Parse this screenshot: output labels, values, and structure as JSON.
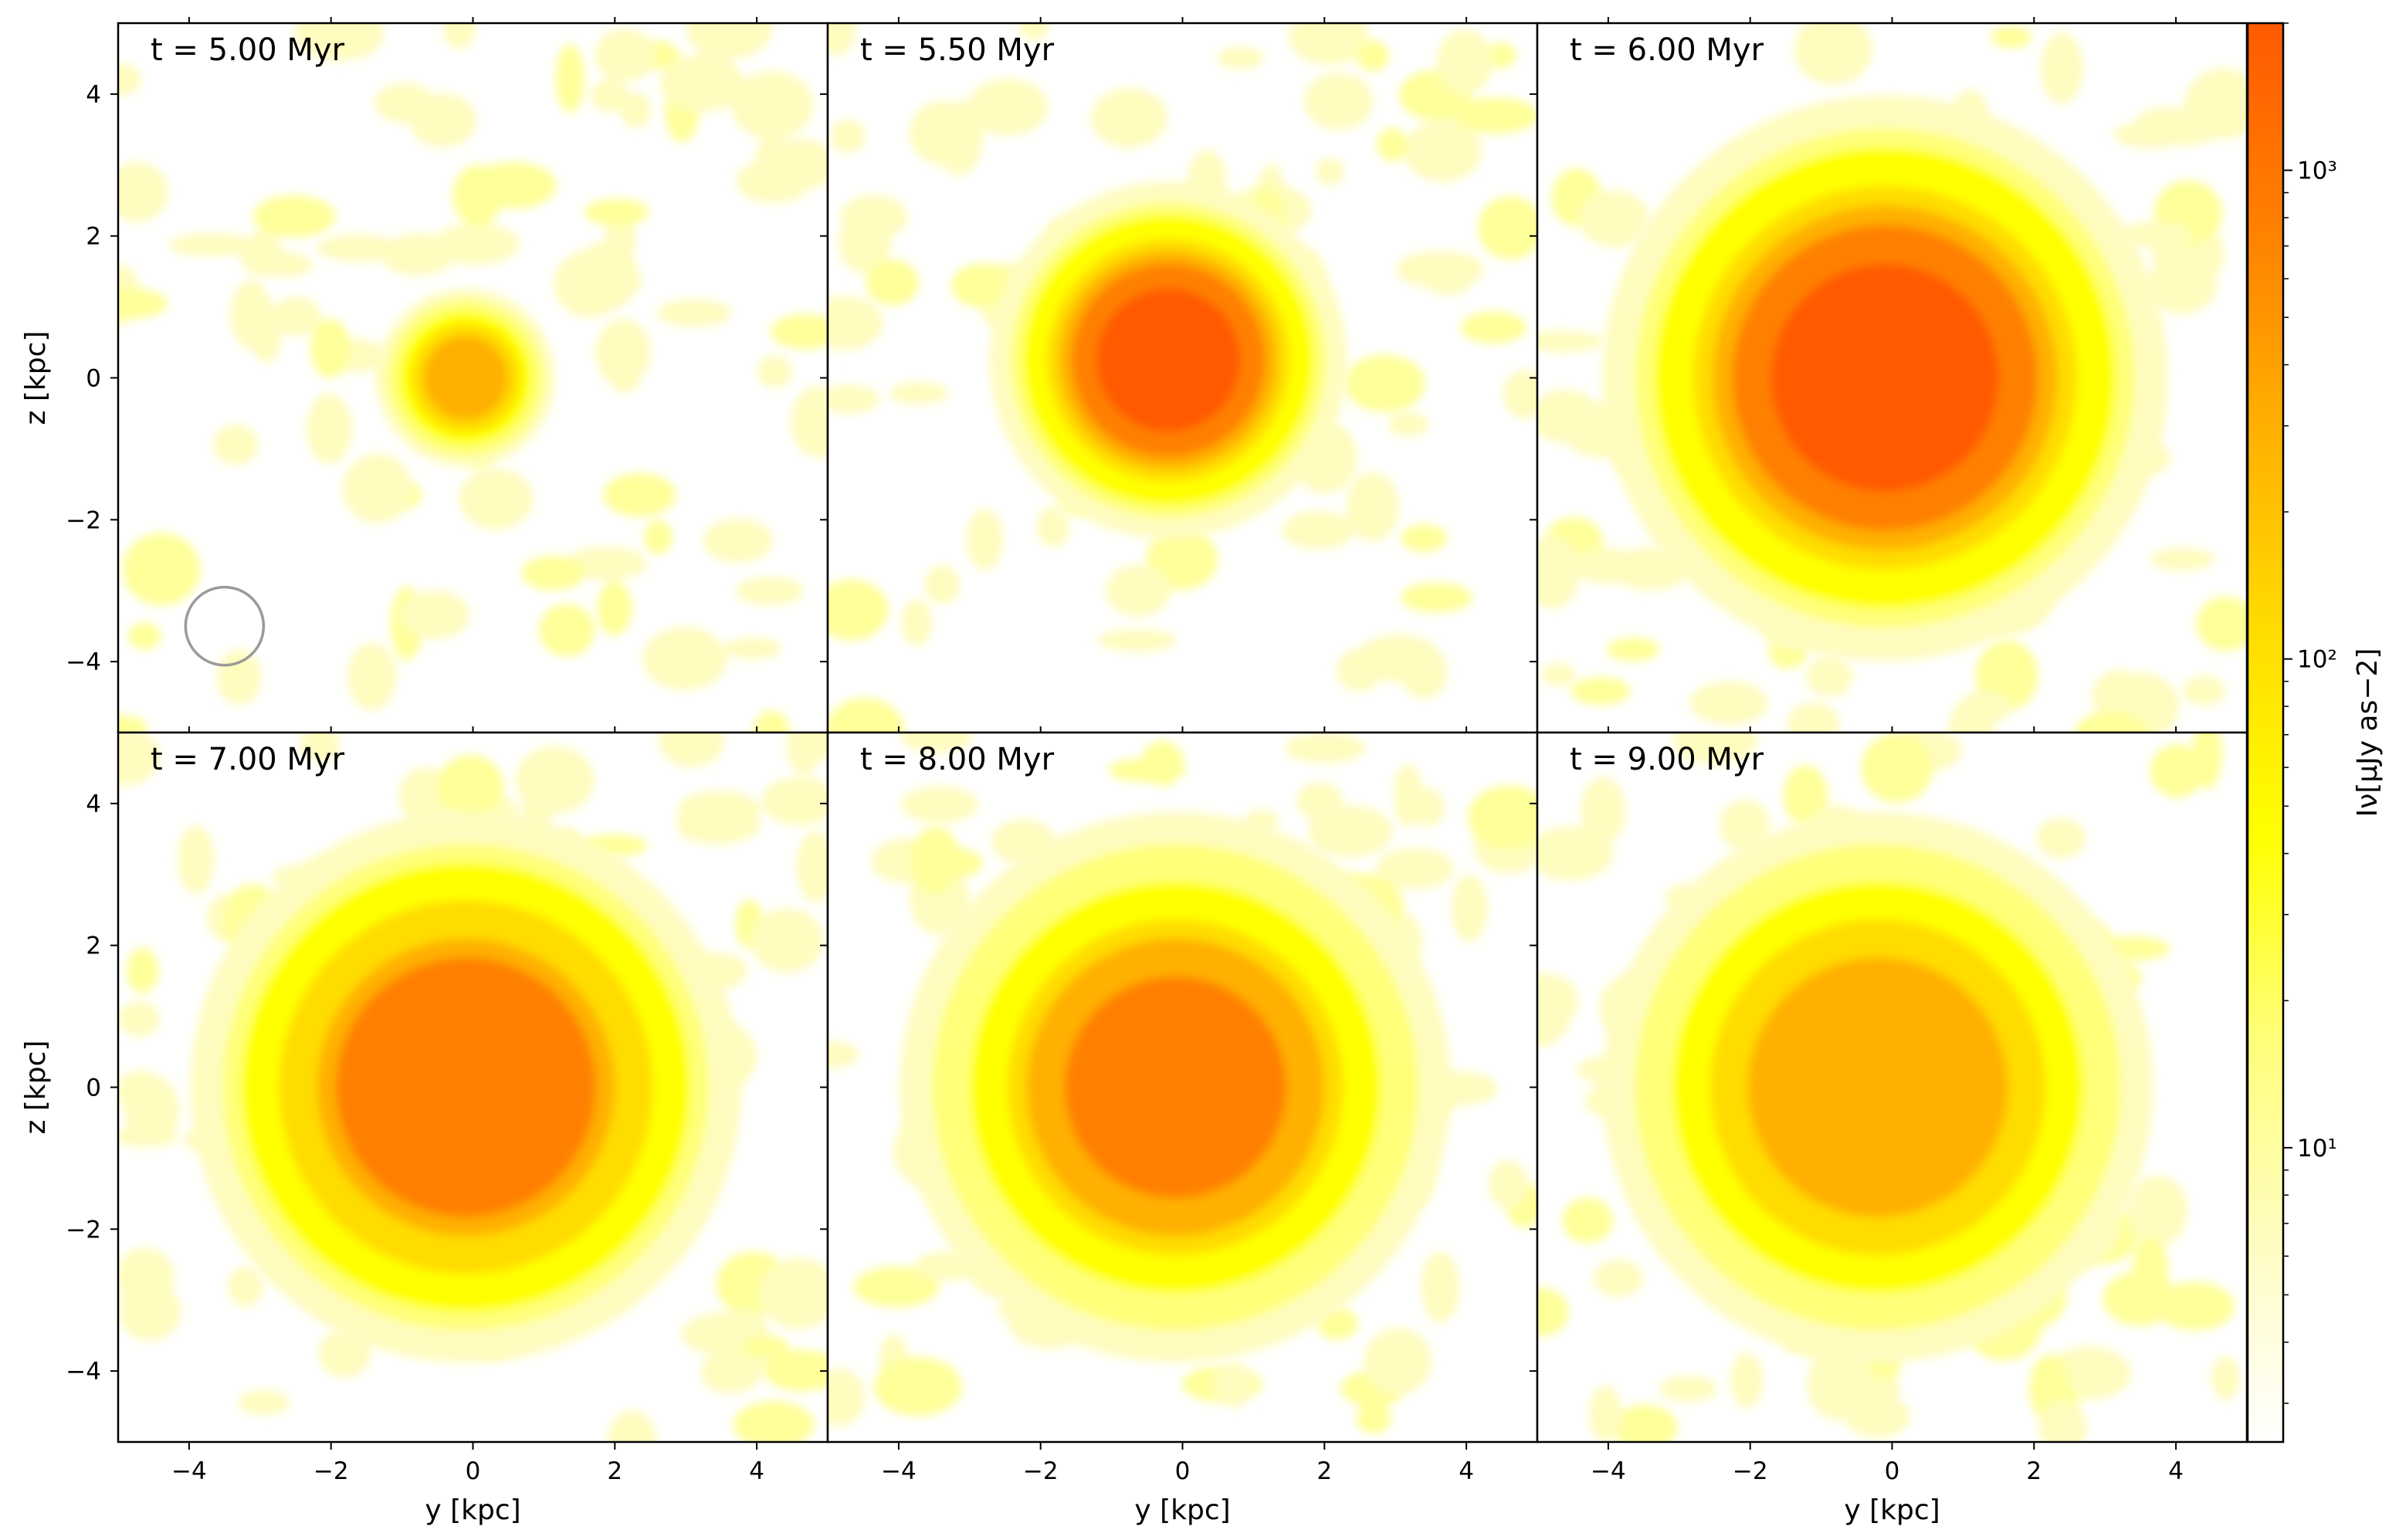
{
  "chart_data": {
    "type": "heatmap",
    "layout": "2x3 panel grid, shared axes",
    "xlabel": "y [kpc]",
    "ylabel": "z [kpc]",
    "xlim": [
      -5,
      5
    ],
    "ylim": [
      -5,
      5
    ],
    "xticks": [
      -4,
      -2,
      0,
      2,
      4
    ],
    "yticks": [
      -4,
      -2,
      0,
      2,
      4
    ],
    "xtick_labels": [
      "−4",
      "−2",
      "0",
      "2",
      "4"
    ],
    "ytick_labels": [
      "−4",
      "−2",
      "0",
      "2",
      "4"
    ],
    "panels": [
      {
        "time_label": "t = 5.00 Myr",
        "t_myr": 5.0,
        "features": [
          {
            "shape": "blob",
            "center": [
              -0.1,
              0.0
            ],
            "radius": 1.2,
            "peak": 400
          },
          {
            "shape": "beam-circle",
            "center": [
              -3.5,
              -3.5
            ],
            "radius": 0.55
          }
        ]
      },
      {
        "time_label": "t = 5.50 Myr",
        "t_myr": 5.5,
        "features": [
          {
            "shape": "blob",
            "center": [
              -0.2,
              0.25
            ],
            "radius": 2.4,
            "peak": 2000
          }
        ]
      },
      {
        "time_label": "t = 6.00 Myr",
        "t_myr": 6.0,
        "features": [
          {
            "shape": "blob",
            "center": [
              -0.1,
              0.0
            ],
            "radius": 3.8,
            "peak": 2000
          }
        ]
      },
      {
        "time_label": "t = 7.00 Myr",
        "t_myr": 7.0,
        "features": [
          {
            "shape": "blob",
            "center": [
              -0.1,
              0.0
            ],
            "radius": 3.7,
            "peak": 1200
          }
        ]
      },
      {
        "time_label": "t = 8.00 Myr",
        "t_myr": 8.0,
        "features": [
          {
            "shape": "blob",
            "center": [
              -0.1,
              0.0
            ],
            "radius": 3.7,
            "peak": 600
          }
        ]
      },
      {
        "time_label": "t = 9.00 Myr",
        "t_myr": 9.0,
        "features": [
          {
            "shape": "blob",
            "center": [
              -0.2,
              0.0
            ],
            "radius": 3.7,
            "peak": 400
          }
        ]
      }
    ],
    "colorbar": {
      "label": "Iν[μJy as−2]",
      "scale": "log",
      "range": [
        2.5,
        2000
      ],
      "ticks": [
        10,
        100,
        1000
      ],
      "tick_labels": [
        "10¹",
        "10²",
        "10³"
      ],
      "colormap": [
        "#ffffff",
        "#fffcc0",
        "#ffff7a",
        "#ffff00",
        "#ffdc00",
        "#ffb000",
        "#ff8000",
        "#ff5a00"
      ]
    }
  }
}
